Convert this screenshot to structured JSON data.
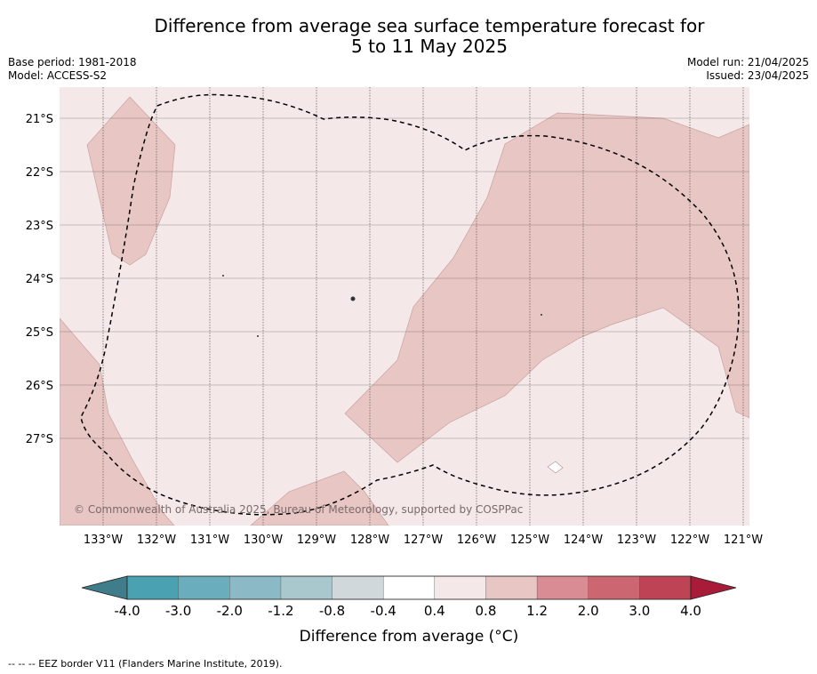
{
  "title_line1": "Difference from average sea surface temperature forecast for",
  "title_line2": "5 to 11 May 2025",
  "base_period": "Base period: 1981-2018",
  "model": "Model: ACCESS-S2",
  "model_run": "Model run: 21/04/2025",
  "issued": "Issued: 23/04/2025",
  "copyright": "© Commonwealth of Australia 2025, Bureau of Meteorology, supported by COSPPac",
  "lat_labels": [
    "21°S",
    "22°S",
    "23°S",
    "24°S",
    "25°S",
    "26°S",
    "27°S"
  ],
  "lon_labels": [
    "133°W",
    "132°W",
    "131°W",
    "130°W",
    "129°W",
    "128°W",
    "127°W",
    "126°W",
    "125°W",
    "124°W",
    "123°W",
    "122°W",
    "121°W"
  ],
  "colorbar": {
    "ticks": [
      "-4.0",
      "-3.0",
      "-2.0",
      "-1.2",
      "-0.8",
      "-0.4",
      "0.4",
      "0.8",
      "1.2",
      "2.0",
      "3.0",
      "4.0"
    ],
    "colors": [
      "#4aa1b2",
      "#6aaebd",
      "#8bbac6",
      "#a8c8ce",
      "#d0d8db",
      "#ffffff",
      "#f5e8e8",
      "#e8c6c4",
      "#d98c93",
      "#cc6670",
      "#be4455"
    ],
    "under_color": "#3f7d8a",
    "over_color": "#a81c3a",
    "label": "Difference from average (°C)"
  },
  "map_colors": {
    "band_0_4_0_8": "#f5e8e8",
    "band_0_8_1_2": "#e8c6c4"
  },
  "footer": "--  --  -- EEZ border V11 (Flanders Marine Institute, 2019)."
}
